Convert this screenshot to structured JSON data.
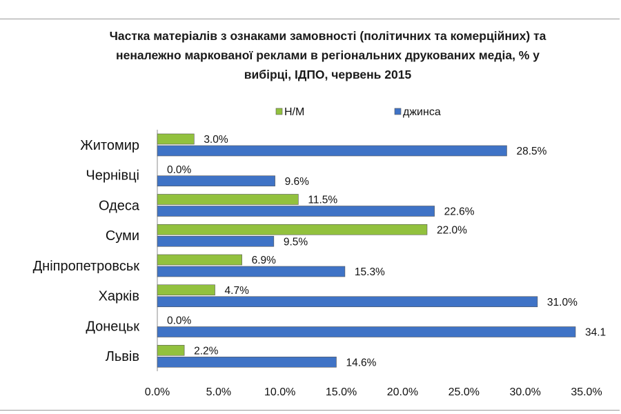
{
  "chart_data": {
    "type": "bar",
    "orientation": "horizontal",
    "title_lines": [
      "Частка матеріалів з ознаками замовності (політичних та комерційних) та",
      "неналежно маркованої реклами  в регіональних друкованих медіа, % у",
      "вибірці, ІДПО, червень 2015"
    ],
    "categories": [
      "Житомир",
      "Чернівці",
      "Одеса",
      "Суми",
      "Дніпропетровськ",
      "Харків",
      "Донецьк",
      "Львів"
    ],
    "series": [
      {
        "name": "Н/М",
        "color": "#92c13e",
        "values": [
          3.0,
          0.0,
          11.5,
          22.0,
          6.9,
          4.7,
          0.0,
          2.2
        ],
        "labels": [
          "3.0%",
          "0.0%",
          "11.5%",
          "22.0%",
          "6.9%",
          "4.7%",
          "0.0%",
          "2.2%"
        ]
      },
      {
        "name": "джинса",
        "color": "#3f73c6",
        "values": [
          28.5,
          9.6,
          22.6,
          9.5,
          15.3,
          31.0,
          34.1,
          14.6
        ],
        "labels": [
          "28.5%",
          "9.6%",
          "22.6%",
          "9.5%",
          "15.3%",
          "31.0%",
          "34.1",
          "14.6%"
        ]
      }
    ],
    "xlim": [
      0,
      35
    ],
    "x_ticks": [
      "0.0%",
      "5.0%",
      "10.0%",
      "15.0%",
      "20.0%",
      "25.0%",
      "30.0%",
      "35.0%"
    ],
    "legend_position": "top",
    "grid": false
  }
}
